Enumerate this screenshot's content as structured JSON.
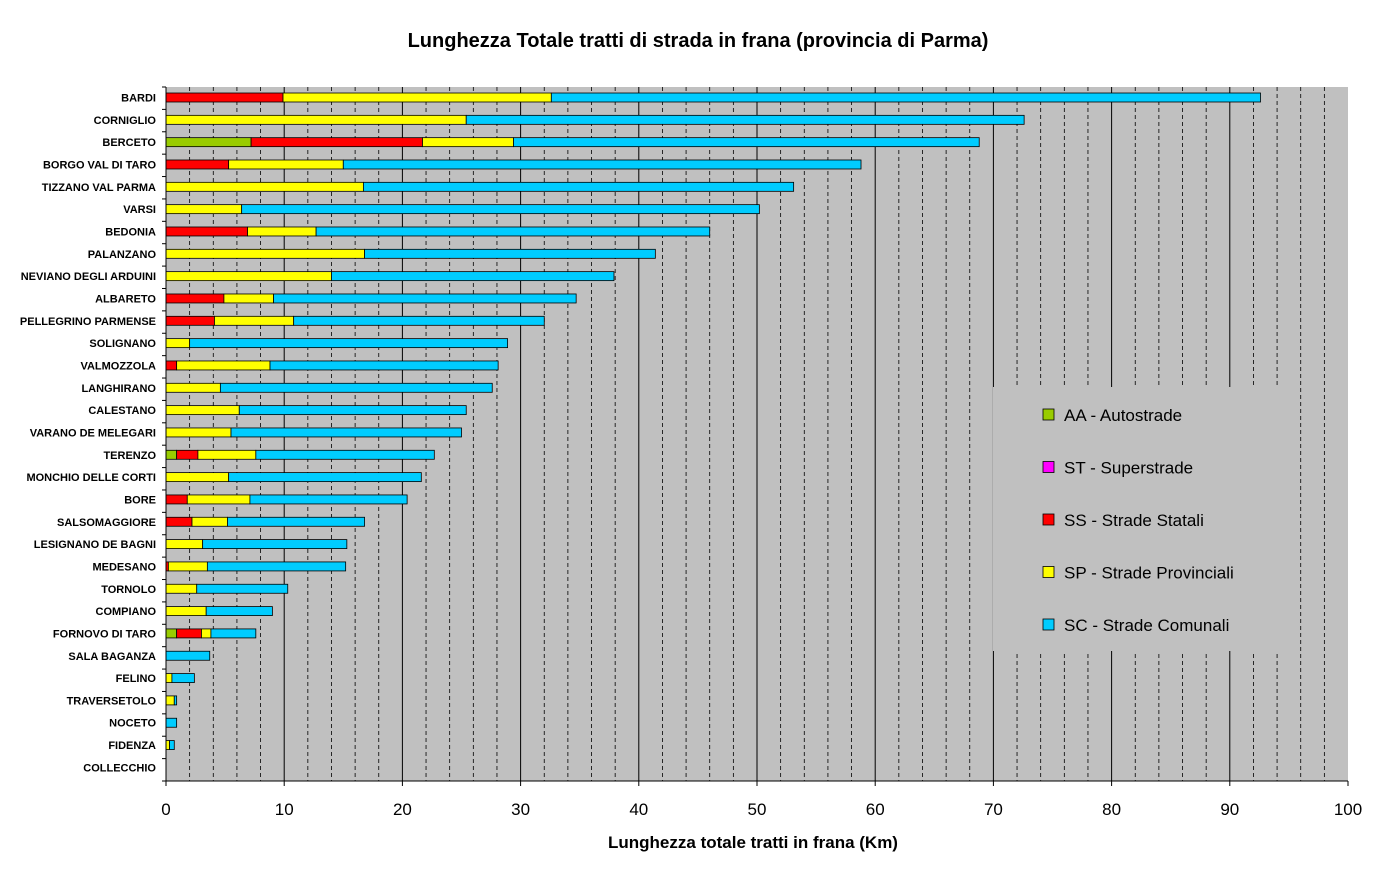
{
  "chart_data": {
    "type": "bar",
    "orientation": "horizontal",
    "stacked": true,
    "title": "Lunghezza Totale tratti di strada in frana (provincia di Parma)",
    "xlabel": "Lunghezza totale tratti in frana (Km)",
    "ylabel": "",
    "xlim": [
      0,
      100
    ],
    "major_ticks": [
      0,
      10,
      20,
      30,
      40,
      50,
      60,
      70,
      80,
      90,
      100
    ],
    "minor_tick_step": 2,
    "grid": "major solid, minor dashed",
    "legend_position": "right",
    "plot_background": "#c0c0c0",
    "categories": [
      "BARDI",
      "CORNIGLIO",
      "BERCETO",
      "BORGO VAL DI TARO",
      "TIZZANO VAL PARMA",
      "VARSI",
      "BEDONIA",
      "PALANZANO",
      "NEVIANO DEGLI ARDUINI",
      "ALBARETO",
      "PELLEGRINO PARMENSE",
      "SOLIGNANO",
      "VALMOZZOLA",
      "LANGHIRANO",
      "CALESTANO",
      "VARANO DE MELEGARI",
      "TERENZO",
      "MONCHIO DELLE CORTI",
      "BORE",
      "SALSOMAGGIORE",
      "LESIGNANO DE BAGNI",
      "MEDESANO",
      "TORNOLO",
      "COMPIANO",
      "FORNOVO DI TARO",
      "SALA BAGANZA",
      "FELINO",
      "TRAVERSETOLO",
      "NOCETO",
      "FIDENZA",
      "COLLECCHIO"
    ],
    "series": [
      {
        "name": "AA - Autostrade",
        "color": "#99cc00",
        "values": [
          0,
          0,
          7.2,
          0,
          0,
          0,
          0,
          0,
          0,
          0,
          0,
          0,
          0,
          0,
          0,
          0,
          0.9,
          0,
          0,
          0,
          0,
          0,
          0,
          0,
          0.9,
          0,
          0,
          0,
          0,
          0,
          0
        ]
      },
      {
        "name": "ST - Superstrade",
        "color": "#ff00ff",
        "values": [
          0,
          0,
          0,
          0,
          0,
          0,
          0,
          0,
          0,
          0,
          0,
          0,
          0,
          0,
          0,
          0,
          0,
          0,
          0,
          0,
          0,
          0,
          0,
          0,
          0,
          0,
          0,
          0,
          0,
          0,
          0
        ]
      },
      {
        "name": "SS - Strade Statali",
        "color": "#ff0000",
        "values": [
          9.9,
          0,
          14.5,
          5.3,
          0,
          0,
          6.9,
          0,
          0,
          4.9,
          4.1,
          0,
          0.9,
          0,
          0,
          0,
          1.8,
          0,
          1.8,
          2.2,
          0,
          0.2,
          0,
          0,
          2.1,
          0,
          0,
          0,
          0,
          0,
          0
        ]
      },
      {
        "name": "SP - Strade Provinciali",
        "color": "#ffff00",
        "values": [
          22.7,
          25.4,
          7.7,
          9.7,
          16.7,
          6.4,
          5.8,
          16.8,
          14.0,
          4.2,
          6.7,
          2.0,
          7.9,
          4.6,
          6.2,
          5.5,
          4.9,
          5.3,
          5.3,
          3.0,
          3.1,
          3.3,
          2.6,
          3.4,
          0.8,
          0,
          0.5,
          0.7,
          0,
          0.3,
          0
        ]
      },
      {
        "name": "SC - Strade Comunali",
        "color": "#00ccff",
        "values": [
          60.0,
          47.2,
          39.4,
          43.8,
          36.4,
          43.8,
          33.3,
          24.6,
          23.9,
          25.6,
          21.2,
          26.9,
          19.3,
          23.0,
          19.2,
          19.5,
          15.1,
          16.3,
          13.3,
          11.6,
          12.2,
          11.7,
          7.7,
          5.6,
          3.8,
          3.7,
          1.9,
          0.2,
          0.9,
          0.4,
          0
        ]
      }
    ]
  }
}
